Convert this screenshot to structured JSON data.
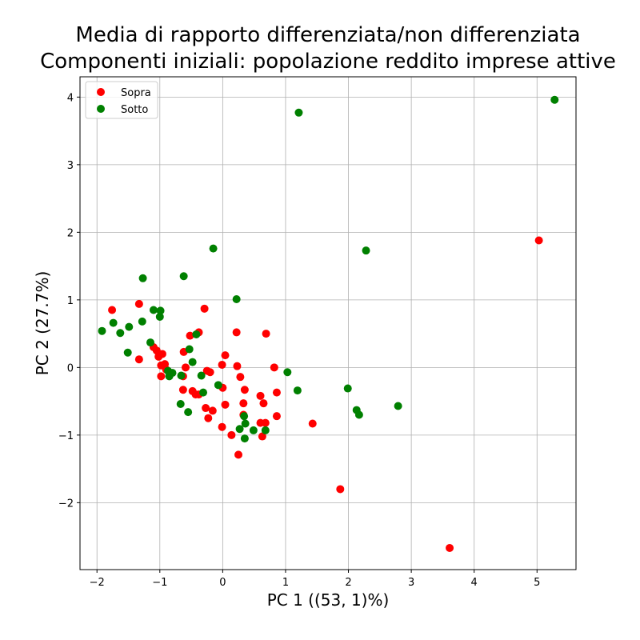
{
  "chart_data": {
    "type": "scatter",
    "title_lines": [
      "Media di rapporto differenziata/non differenziata",
      "Componenti iniziali: popolazione reddito imprese attive"
    ],
    "xlabel": "PC 1 ((53, 1)%)",
    "ylabel": "PC 2 (27.7%)",
    "xlim": [
      -2.27,
      5.62
    ],
    "ylim": [
      -2.99,
      4.3
    ],
    "xticks": [
      -2,
      -1,
      0,
      1,
      2,
      3,
      4,
      5
    ],
    "yticks": [
      -2,
      -1,
      0,
      1,
      2,
      3,
      4
    ],
    "grid": true,
    "legend_position": "top-left",
    "series": [
      {
        "name": "Sopra",
        "color": "#ff0000",
        "points": [
          [
            -1.76,
            0.85
          ],
          [
            -1.33,
            0.94
          ],
          [
            -1.33,
            0.12
          ],
          [
            -1.1,
            0.3
          ],
          [
            -1.05,
            0.25
          ],
          [
            -1.02,
            0.16
          ],
          [
            -0.96,
            0.2
          ],
          [
            -0.98,
            0.03
          ],
          [
            -0.98,
            -0.13
          ],
          [
            -0.92,
            0.05
          ],
          [
            -0.9,
            -0.03
          ],
          [
            -0.62,
            0.23
          ],
          [
            -0.52,
            0.47
          ],
          [
            -0.38,
            0.52
          ],
          [
            -0.59,
            0.0
          ],
          [
            -0.63,
            -0.13
          ],
          [
            -0.63,
            -0.33
          ],
          [
            -0.48,
            -0.35
          ],
          [
            -0.43,
            -0.4
          ],
          [
            -0.38,
            -0.4
          ],
          [
            -0.29,
            0.87
          ],
          [
            -0.25,
            -0.05
          ],
          [
            -0.2,
            -0.07
          ],
          [
            -0.27,
            -0.6
          ],
          [
            -0.23,
            -0.75
          ],
          [
            -0.16,
            -0.64
          ],
          [
            -0.01,
            0.04
          ],
          [
            0.04,
            0.18
          ],
          [
            0.0,
            -0.3
          ],
          [
            0.04,
            -0.55
          ],
          [
            -0.01,
            -0.88
          ],
          [
            0.14,
            -1.0
          ],
          [
            0.22,
            0.52
          ],
          [
            0.23,
            0.02
          ],
          [
            0.28,
            -0.14
          ],
          [
            0.33,
            -0.53
          ],
          [
            0.35,
            -0.33
          ],
          [
            0.33,
            -0.7
          ],
          [
            0.25,
            -1.29
          ],
          [
            0.6,
            -0.42
          ],
          [
            0.65,
            -0.53
          ],
          [
            0.6,
            -0.82
          ],
          [
            0.68,
            -0.82
          ],
          [
            0.63,
            -1.02
          ],
          [
            0.69,
            0.5
          ],
          [
            0.82,
            0.0
          ],
          [
            0.86,
            -0.37
          ],
          [
            0.86,
            -0.72
          ],
          [
            1.43,
            -0.83
          ],
          [
            1.87,
            -1.8
          ],
          [
            3.61,
            -2.67
          ],
          [
            5.03,
            1.88
          ]
        ]
      },
      {
        "name": "Sotto",
        "color": "#008000",
        "points": [
          [
            -1.92,
            0.54
          ],
          [
            -1.74,
            0.66
          ],
          [
            -1.63,
            0.51
          ],
          [
            -1.49,
            0.6
          ],
          [
            -1.51,
            0.22
          ],
          [
            -1.27,
            1.32
          ],
          [
            -1.28,
            0.68
          ],
          [
            -1.15,
            0.37
          ],
          [
            -1.1,
            0.85
          ],
          [
            -0.99,
            0.84
          ],
          [
            -1.0,
            0.75
          ],
          [
            -0.85,
            -0.13
          ],
          [
            -0.8,
            -0.08
          ],
          [
            -0.87,
            -0.05
          ],
          [
            -0.66,
            -0.12
          ],
          [
            -0.67,
            -0.54
          ],
          [
            -0.62,
            1.35
          ],
          [
            -0.55,
            -0.66
          ],
          [
            -0.53,
            0.27
          ],
          [
            -0.48,
            0.08
          ],
          [
            -0.42,
            0.49
          ],
          [
            -0.34,
            -0.12
          ],
          [
            -0.31,
            -0.37
          ],
          [
            -0.15,
            1.76
          ],
          [
            -0.07,
            -0.26
          ],
          [
            0.22,
            1.01
          ],
          [
            0.27,
            -0.91
          ],
          [
            0.34,
            -0.72
          ],
          [
            0.36,
            -0.83
          ],
          [
            0.35,
            -1.05
          ],
          [
            0.49,
            -0.93
          ],
          [
            0.68,
            -0.93
          ],
          [
            1.03,
            -0.07
          ],
          [
            1.19,
            -0.34
          ],
          [
            1.21,
            3.77
          ],
          [
            1.99,
            -0.31
          ],
          [
            2.13,
            -0.63
          ],
          [
            2.17,
            -0.7
          ],
          [
            2.28,
            1.73
          ],
          [
            2.79,
            -0.57
          ],
          [
            5.28,
            3.96
          ]
        ]
      }
    ]
  }
}
